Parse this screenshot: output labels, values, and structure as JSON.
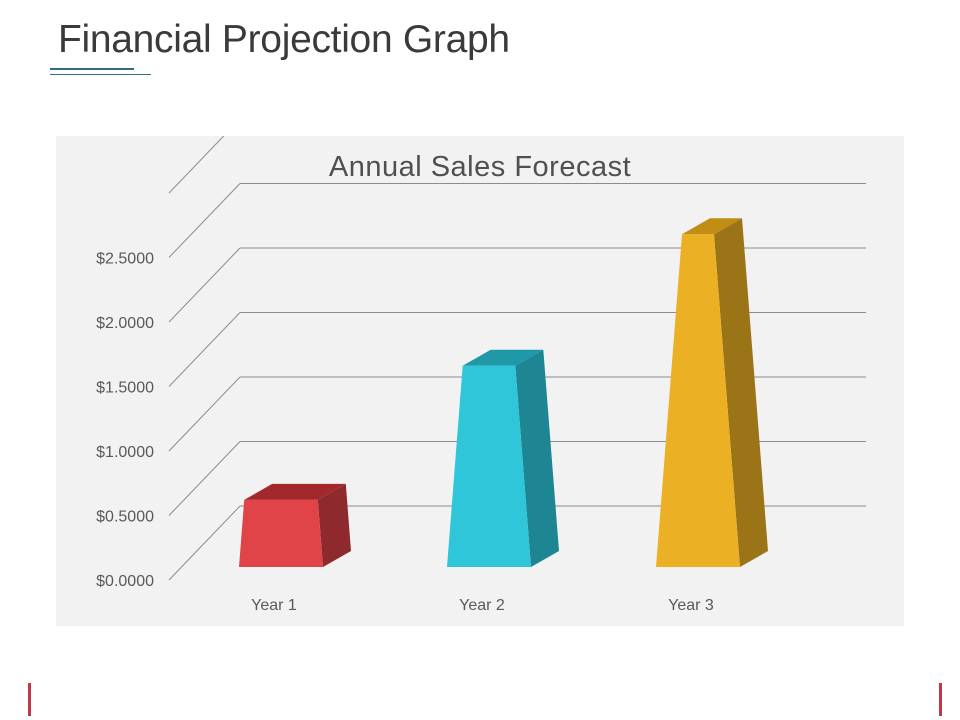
{
  "page": {
    "title": "Financial Projection Graph"
  },
  "chart_data": {
    "type": "bar",
    "title": "Annual Sales Forecast",
    "xlabel": "",
    "ylabel": "",
    "categories": [
      "Year 1",
      "Year 2",
      "Year 3"
    ],
    "values": [
      0.52,
      1.56,
      2.58
    ],
    "ylim": [
      0,
      3.0
    ],
    "yticks": [
      "$0.0000",
      "$0.5000",
      "$1.0000",
      "$1.5000",
      "$2.0000",
      "$2.5000"
    ],
    "grid": true,
    "legend": "none",
    "colors": [
      "#e04448",
      "#2fc6d9",
      "#ebb024"
    ],
    "shade_colors": [
      "#8e2a2e",
      "#1e8593",
      "#9b7417"
    ],
    "top_colors": [
      "#a3282c",
      "#1f98a8",
      "#c08d15"
    ]
  }
}
